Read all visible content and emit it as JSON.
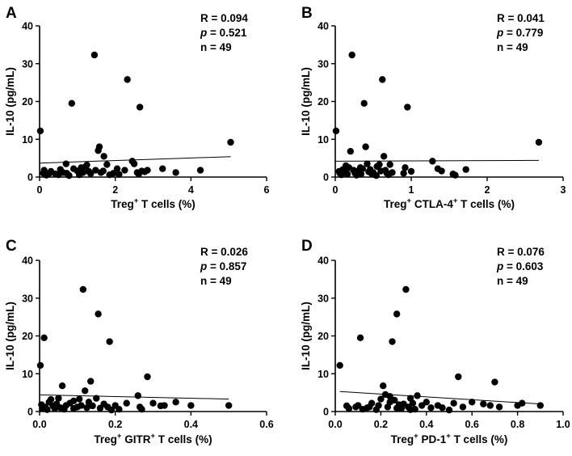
{
  "chart_data": [
    {
      "panel": "A",
      "type": "scatter",
      "xlabel_main": "Treg",
      "xlabel_sup": "+",
      "xlabel_rest": " T cells (%)",
      "ylabel": "IL-10 (pg/mL)",
      "xlim": [
        0,
        6
      ],
      "ylim": [
        0,
        40
      ],
      "xticks": [
        0,
        2,
        4,
        6
      ],
      "xtick_labels": [
        "0",
        "2",
        "4",
        "6"
      ],
      "yticks": [
        0,
        10,
        20,
        30,
        40
      ],
      "ytick_labels": [
        "0",
        "10",
        "20",
        "30",
        "40"
      ],
      "stats": {
        "r": "R = 0.094",
        "p_label": "p",
        "p_value": " = 0.521",
        "n": "n = 49"
      },
      "regression": {
        "x": [
          0,
          5.05
        ],
        "y": [
          3.7,
          5.4
        ]
      },
      "points": [
        [
          0.02,
          12.2
        ],
        [
          0.1,
          1.0
        ],
        [
          0.12,
          1.8
        ],
        [
          0.18,
          0.5
        ],
        [
          0.3,
          1.5
        ],
        [
          0.42,
          0.8
        ],
        [
          0.55,
          2.0
        ],
        [
          0.62,
          1.2
        ],
        [
          0.7,
          3.5
        ],
        [
          0.72,
          1.0
        ],
        [
          0.78,
          0.4
        ],
        [
          0.85,
          19.5
        ],
        [
          0.9,
          2.2
        ],
        [
          1.0,
          1.6
        ],
        [
          1.05,
          0.6
        ],
        [
          1.15,
          1.2
        ],
        [
          1.22,
          2.8
        ],
        [
          1.25,
          3.2
        ],
        [
          1.3,
          1.5
        ],
        [
          1.35,
          0.9
        ],
        [
          1.45,
          32.3
        ],
        [
          1.48,
          1.8
        ],
        [
          1.55,
          7.0
        ],
        [
          1.58,
          8.0
        ],
        [
          1.62,
          1.2
        ],
        [
          1.68,
          1.6
        ],
        [
          1.7,
          5.5
        ],
        [
          1.78,
          3.3
        ],
        [
          1.85,
          0.6
        ],
        [
          1.95,
          1.0
        ],
        [
          2.05,
          2.2
        ],
        [
          2.25,
          1.8
        ],
        [
          2.32,
          25.8
        ],
        [
          2.45,
          4.2
        ],
        [
          2.5,
          3.5
        ],
        [
          2.58,
          1.2
        ],
        [
          2.62,
          0.8
        ],
        [
          2.65,
          18.5
        ],
        [
          2.7,
          1.6
        ],
        [
          2.78,
          1.4
        ],
        [
          2.85,
          1.8
        ],
        [
          3.25,
          2.2
        ],
        [
          3.6,
          1.2
        ],
        [
          4.25,
          1.8
        ],
        [
          5.05,
          9.2
        ],
        [
          0.25,
          0.9
        ],
        [
          1.1,
          2.5
        ],
        [
          2.1,
          0.7
        ],
        [
          0.5,
          0.6
        ]
      ]
    },
    {
      "panel": "B",
      "type": "scatter",
      "xlabel_main": "Treg",
      "xlabel_sup": "+",
      "xlabel_rest": " CTLA-4",
      "xlabel_sup2": "+",
      "xlabel_rest2": " T cells (%)",
      "ylabel": "IL-10 (pg/mL)",
      "xlim": [
        0,
        3
      ],
      "ylim": [
        0,
        40
      ],
      "xticks": [
        0,
        1,
        2,
        3
      ],
      "xtick_labels": [
        "0",
        "1",
        "2",
        "3"
      ],
      "yticks": [
        0,
        10,
        20,
        30,
        40
      ],
      "ytick_labels": [
        "0",
        "10",
        "20",
        "30",
        "40"
      ],
      "stats": {
        "r": "R = 0.041",
        "p_label": "p",
        "p_value": " = 0.779",
        "n": "n = 49"
      },
      "regression": {
        "x": [
          0,
          2.68
        ],
        "y": [
          4.2,
          4.4
        ]
      },
      "points": [
        [
          0.01,
          12.2
        ],
        [
          0.05,
          1.5
        ],
        [
          0.08,
          0.6
        ],
        [
          0.1,
          2.0
        ],
        [
          0.12,
          1.2
        ],
        [
          0.14,
          3.0
        ],
        [
          0.16,
          0.8
        ],
        [
          0.18,
          2.5
        ],
        [
          0.2,
          6.8
        ],
        [
          0.22,
          32.3
        ],
        [
          0.24,
          1.8
        ],
        [
          0.26,
          1.0
        ],
        [
          0.28,
          0.5
        ],
        [
          0.3,
          1.6
        ],
        [
          0.32,
          1.2
        ],
        [
          0.34,
          0.8
        ],
        [
          0.36,
          2.2
        ],
        [
          0.38,
          19.5
        ],
        [
          0.4,
          8.0
        ],
        [
          0.42,
          3.5
        ],
        [
          0.44,
          1.4
        ],
        [
          0.46,
          2.0
        ],
        [
          0.48,
          0.9
        ],
        [
          0.5,
          1.2
        ],
        [
          0.52,
          0.6
        ],
        [
          0.55,
          2.8
        ],
        [
          0.58,
          3.3
        ],
        [
          0.6,
          1.6
        ],
        [
          0.62,
          25.8
        ],
        [
          0.64,
          5.5
        ],
        [
          0.66,
          1.8
        ],
        [
          0.68,
          1.0
        ],
        [
          0.7,
          0.6
        ],
        [
          0.72,
          3.3
        ],
        [
          0.75,
          1.2
        ],
        [
          0.95,
          18.5
        ],
        [
          0.92,
          2.5
        ],
        [
          0.9,
          1.0
        ],
        [
          1.28,
          4.2
        ],
        [
          1.35,
          2.2
        ],
        [
          1.4,
          1.6
        ],
        [
          1.55,
          0.8
        ],
        [
          1.58,
          0.5
        ],
        [
          1.72,
          2.0
        ],
        [
          2.68,
          9.2
        ],
        [
          0.06,
          1.0
        ],
        [
          0.33,
          2.5
        ],
        [
          0.54,
          0.4
        ],
        [
          1.0,
          1.5
        ]
      ]
    },
    {
      "panel": "C",
      "type": "scatter",
      "xlabel_main": "Treg",
      "xlabel_sup": "+",
      "xlabel_rest": " GITR",
      "xlabel_sup2": "+",
      "xlabel_rest2": " T cells (%)",
      "ylabel": "IL-10 (pg/mL)",
      "xlim": [
        0,
        0.6
      ],
      "ylim": [
        0,
        40
      ],
      "xticks": [
        0,
        0.2,
        0.4,
        0.6
      ],
      "xtick_labels": [
        "0.0",
        "0.2",
        "0.4",
        "0.6"
      ],
      "yticks": [
        0,
        10,
        20,
        30,
        40
      ],
      "ytick_labels": [
        "0",
        "10",
        "20",
        "30",
        "40"
      ],
      "stats": {
        "r": "R = 0.026",
        "p_label": "p",
        "p_value": " = 0.857",
        "n": "n = 49"
      },
      "regression": {
        "x": [
          0,
          0.5
        ],
        "y": [
          4.4,
          3.3
        ]
      },
      "points": [
        [
          0.002,
          12.2
        ],
        [
          0.005,
          1.8
        ],
        [
          0.008,
          0.8
        ],
        [
          0.012,
          19.5
        ],
        [
          0.015,
          1.2
        ],
        [
          0.02,
          0.5
        ],
        [
          0.025,
          2.5
        ],
        [
          0.03,
          3.2
        ],
        [
          0.035,
          1.5
        ],
        [
          0.04,
          0.8
        ],
        [
          0.045,
          2.0
        ],
        [
          0.05,
          3.5
        ],
        [
          0.055,
          1.0
        ],
        [
          0.06,
          6.8
        ],
        [
          0.065,
          0.6
        ],
        [
          0.07,
          1.6
        ],
        [
          0.08,
          2.2
        ],
        [
          0.09,
          0.8
        ],
        [
          0.1,
          1.2
        ],
        [
          0.105,
          3.3
        ],
        [
          0.11,
          1.6
        ],
        [
          0.115,
          32.3
        ],
        [
          0.12,
          5.5
        ],
        [
          0.125,
          1.0
        ],
        [
          0.13,
          2.5
        ],
        [
          0.135,
          8.0
        ],
        [
          0.14,
          1.5
        ],
        [
          0.15,
          3.5
        ],
        [
          0.155,
          25.8
        ],
        [
          0.16,
          0.9
        ],
        [
          0.17,
          2.0
        ],
        [
          0.18,
          1.2
        ],
        [
          0.185,
          18.5
        ],
        [
          0.2,
          1.6
        ],
        [
          0.21,
          0.6
        ],
        [
          0.23,
          2.2
        ],
        [
          0.26,
          4.2
        ],
        [
          0.265,
          1.2
        ],
        [
          0.27,
          0.6
        ],
        [
          0.285,
          9.2
        ],
        [
          0.3,
          2.2
        ],
        [
          0.32,
          1.5
        ],
        [
          0.33,
          1.6
        ],
        [
          0.36,
          2.5
        ],
        [
          0.4,
          1.6
        ],
        [
          0.5,
          1.6
        ],
        [
          0.01,
          1.0
        ],
        [
          0.09,
          2.8
        ],
        [
          0.19,
          0.4
        ]
      ]
    },
    {
      "panel": "D",
      "type": "scatter",
      "xlabel_main": "Treg",
      "xlabel_sup": "+",
      "xlabel_rest": " PD-1",
      "xlabel_sup2": "+",
      "xlabel_rest2": " T cells (%)",
      "ylabel": "IL-10 (pg/mL)",
      "xlim": [
        0,
        1.0
      ],
      "ylim": [
        0,
        40
      ],
      "xticks": [
        0,
        0.2,
        0.4,
        0.6,
        0.8,
        1.0
      ],
      "xtick_labels": [
        "0.0",
        "0.2",
        "0.4",
        "0.6",
        "0.8",
        "1.0"
      ],
      "yticks": [
        0,
        10,
        20,
        30,
        40
      ],
      "ytick_labels": [
        "0",
        "10",
        "20",
        "30",
        "40"
      ],
      "stats": {
        "r": "R = 0.076",
        "p_label": "p",
        "p_value": " = 0.603",
        "n": "n = 49"
      },
      "regression": {
        "x": [
          0.02,
          0.9
        ],
        "y": [
          5.3,
          2.0
        ]
      },
      "points": [
        [
          0.02,
          12.2
        ],
        [
          0.05,
          1.5
        ],
        [
          0.06,
          0.8
        ],
        [
          0.09,
          1.2
        ],
        [
          0.1,
          1.6
        ],
        [
          0.11,
          19.5
        ],
        [
          0.12,
          0.6
        ],
        [
          0.14,
          1.0
        ],
        [
          0.16,
          2.2
        ],
        [
          0.18,
          0.5
        ],
        [
          0.19,
          1.6
        ],
        [
          0.2,
          3.3
        ],
        [
          0.21,
          6.8
        ],
        [
          0.22,
          4.5
        ],
        [
          0.23,
          1.2
        ],
        [
          0.24,
          2.5
        ],
        [
          0.25,
          18.5
        ],
        [
          0.26,
          3.0
        ],
        [
          0.27,
          25.8
        ],
        [
          0.28,
          1.8
        ],
        [
          0.29,
          0.8
        ],
        [
          0.3,
          2.0
        ],
        [
          0.31,
          32.3
        ],
        [
          0.32,
          1.2
        ],
        [
          0.33,
          3.5
        ],
        [
          0.34,
          2.2
        ],
        [
          0.35,
          0.6
        ],
        [
          0.36,
          4.2
        ],
        [
          0.38,
          1.6
        ],
        [
          0.4,
          2.5
        ],
        [
          0.42,
          1.0
        ],
        [
          0.45,
          1.6
        ],
        [
          0.5,
          0.4
        ],
        [
          0.52,
          2.2
        ],
        [
          0.54,
          9.2
        ],
        [
          0.56,
          1.2
        ],
        [
          0.6,
          2.5
        ],
        [
          0.65,
          2.0
        ],
        [
          0.68,
          1.6
        ],
        [
          0.7,
          7.8
        ],
        [
          0.72,
          1.2
        ],
        [
          0.8,
          1.6
        ],
        [
          0.82,
          2.2
        ],
        [
          0.9,
          1.6
        ],
        [
          0.15,
          1.2
        ],
        [
          0.27,
          0.9
        ],
        [
          0.33,
          0.5
        ],
        [
          0.47,
          1.0
        ],
        [
          0.24,
          4.0
        ]
      ]
    }
  ]
}
